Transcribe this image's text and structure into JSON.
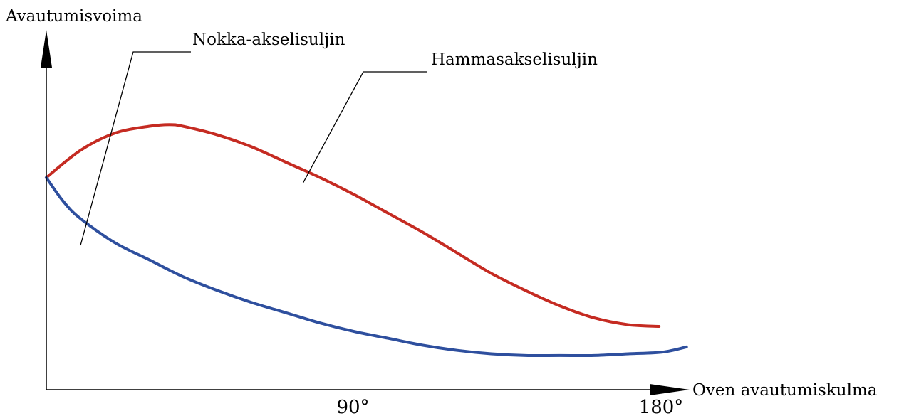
{
  "chart_data": {
    "type": "line",
    "title": "",
    "ylabel": "Avautumisvoima",
    "xlabel": "Oven avautumiskulma",
    "xlim": [
      0,
      180
    ],
    "ylim": [
      0,
      100
    ],
    "x_tick_labels": [
      {
        "value": 90,
        "label": "90°"
      },
      {
        "value": 180,
        "label": "180°"
      }
    ],
    "grid": false,
    "series": [
      {
        "name": "Nokka-akselisuljin",
        "color": "#2e4f9e",
        "x": [
          0,
          5,
          10,
          20,
          30,
          40,
          50,
          60,
          70,
          80,
          90,
          100,
          110,
          120,
          130,
          140,
          150,
          160,
          170,
          180,
          187
        ],
        "y": [
          62,
          55,
          50,
          43,
          38,
          33,
          29,
          25.5,
          22.5,
          19.5,
          17,
          15,
          13,
          11.5,
          10.5,
          10,
          10,
          10,
          10.5,
          11,
          12.5
        ]
      },
      {
        "name": "Hammasakselisuljin",
        "color": "#c52b22",
        "x": [
          0,
          10,
          20,
          30,
          36,
          40,
          50,
          60,
          70,
          80,
          90,
          100,
          110,
          120,
          130,
          140,
          150,
          160,
          170,
          179
        ],
        "y": [
          62,
          70,
          75,
          77,
          77.5,
          77,
          74.5,
          71,
          66.5,
          62,
          57,
          51.5,
          46,
          40,
          34,
          29,
          24.5,
          21,
          19,
          18.5
        ]
      }
    ],
    "annotations": [
      {
        "text": "Nokka-akselisuljin",
        "series": 0
      },
      {
        "text": "Hammasakselisuljin",
        "series": 1
      }
    ]
  }
}
